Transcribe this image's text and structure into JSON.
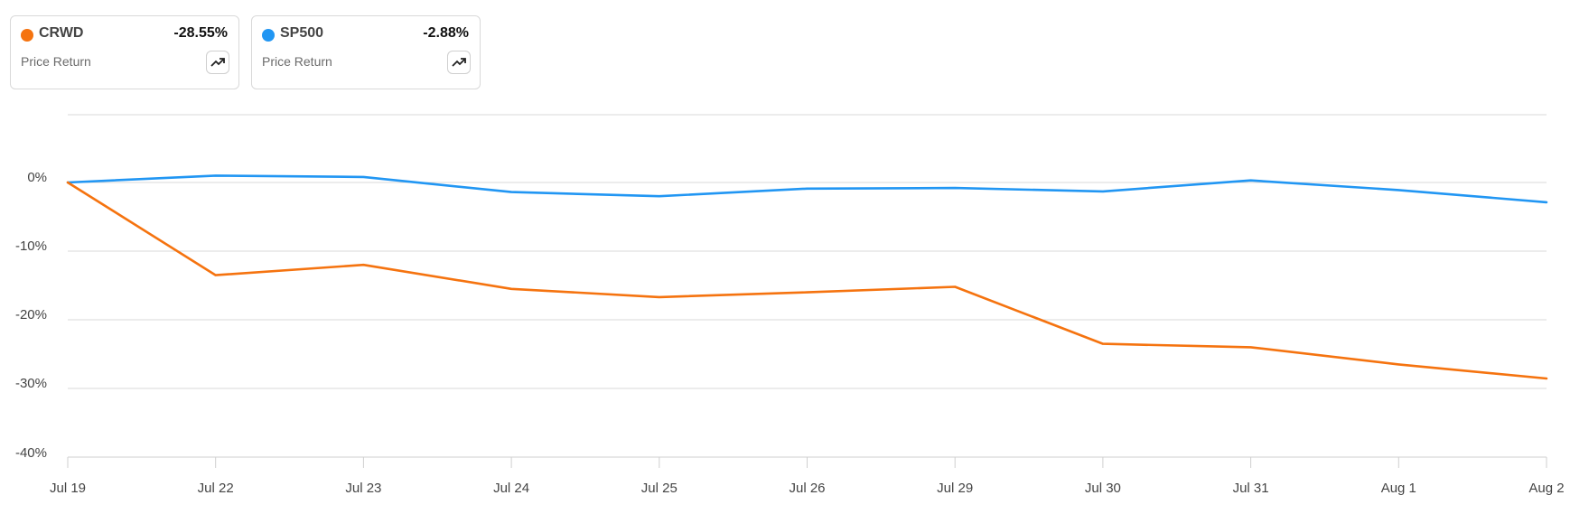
{
  "legend": [
    {
      "ticker": "CRWD",
      "change": "-28.55%",
      "metric": "Price Return",
      "color": "#f5730f",
      "icon": "trend-up-icon"
    },
    {
      "ticker": "SP500",
      "change": "-2.88%",
      "metric": "Price Return",
      "color": "#2196f3",
      "icon": "trend-up-icon"
    }
  ],
  "chart_data": {
    "type": "line",
    "categories": [
      "Jul 19",
      "Jul 22",
      "Jul 23",
      "Jul 24",
      "Jul 25",
      "Jul 26",
      "Jul 29",
      "Jul 30",
      "Jul 31",
      "Aug 1",
      "Aug 2"
    ],
    "series": [
      {
        "name": "CRWD",
        "color": "#f5730f",
        "values": [
          0,
          -13.5,
          -12.0,
          -15.5,
          -16.7,
          -16.0,
          -15.2,
          -23.5,
          -24.0,
          -26.5,
          -28.55
        ]
      },
      {
        "name": "SP500",
        "color": "#2196f3",
        "values": [
          0,
          1.0,
          0.8,
          -1.4,
          -2.0,
          -0.9,
          -0.8,
          -1.3,
          0.3,
          -1.1,
          -2.88
        ]
      }
    ],
    "yticks": [
      0,
      -10,
      -20,
      -30,
      -40
    ],
    "ytick_labels": [
      "0%",
      "-10%",
      "-20%",
      "-30%",
      "-40%"
    ],
    "ylim": [
      -40,
      10
    ],
    "grid": true,
    "legend_position": "top-left",
    "title": "",
    "xlabel": "",
    "ylabel": ""
  }
}
